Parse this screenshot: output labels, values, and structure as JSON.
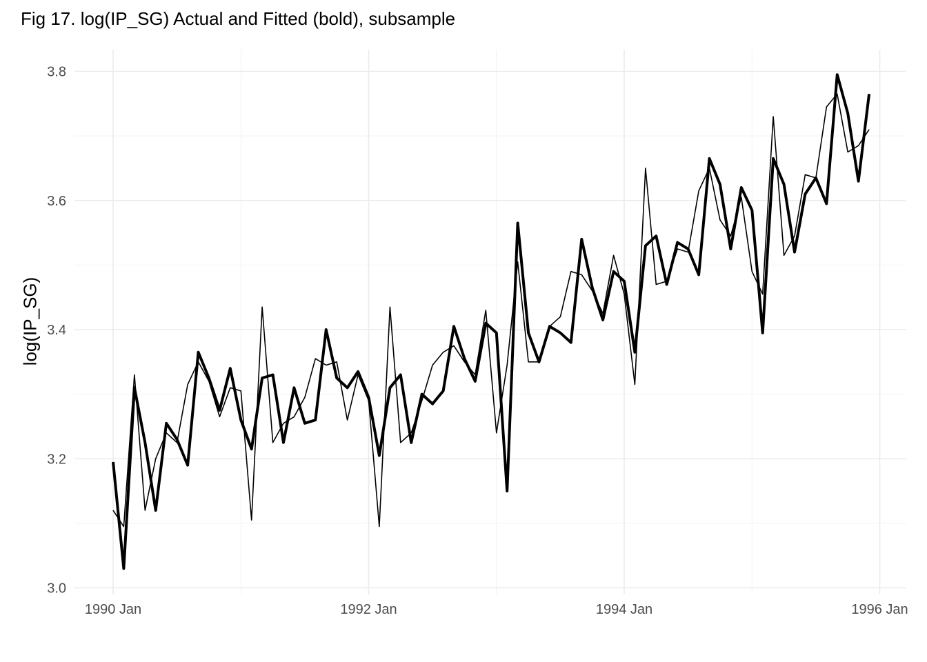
{
  "chart_data": {
    "type": "line",
    "title": "Fig 17. log(IP_SG) Actual and Fitted (bold), subsample",
    "xlabel": "",
    "ylabel": "log(IP_SG)",
    "ylim": [
      3.0,
      3.8
    ],
    "xlim": [
      "1990-01",
      "1996-01"
    ],
    "y_ticks": [
      "3.0",
      "3.2",
      "3.4",
      "3.6",
      "3.8"
    ],
    "x_ticks": [
      {
        "label": "1990 Jan",
        "date": "1990-01"
      },
      {
        "label": "1992 Jan",
        "date": "1992-01"
      },
      {
        "label": "1994 Jan",
        "date": "1994-01"
      },
      {
        "label": "1996 Jan",
        "date": "1996-01"
      }
    ],
    "grid": true,
    "legend": "none",
    "x": [
      "1990-01",
      "1990-02",
      "1990-03",
      "1990-04",
      "1990-05",
      "1990-06",
      "1990-07",
      "1990-08",
      "1990-09",
      "1990-10",
      "1990-11",
      "1990-12",
      "1991-01",
      "1991-02",
      "1991-03",
      "1991-04",
      "1991-05",
      "1991-06",
      "1991-07",
      "1991-08",
      "1991-09",
      "1991-10",
      "1991-11",
      "1991-12",
      "1992-01",
      "1992-02",
      "1992-03",
      "1992-04",
      "1992-05",
      "1992-06",
      "1992-07",
      "1992-08",
      "1992-09",
      "1992-10",
      "1992-11",
      "1992-12",
      "1993-01",
      "1993-02",
      "1993-03",
      "1993-04",
      "1993-05",
      "1993-06",
      "1993-07",
      "1993-08",
      "1993-09",
      "1993-10",
      "1993-11",
      "1993-12",
      "1994-01",
      "1994-02",
      "1994-03",
      "1994-04",
      "1994-05",
      "1994-06",
      "1994-07",
      "1994-08",
      "1994-09",
      "1994-10",
      "1994-11",
      "1994-12",
      "1995-01",
      "1995-02",
      "1995-03",
      "1995-04",
      "1995-05",
      "1995-06",
      "1995-07",
      "1995-08",
      "1995-09",
      "1995-10",
      "1995-11",
      "1995-12"
    ],
    "series": [
      {
        "style": "thin",
        "color": "#000000",
        "values": [
          3.12,
          3.095,
          3.33,
          3.12,
          3.2,
          3.24,
          3.225,
          3.315,
          3.35,
          3.32,
          3.265,
          3.31,
          3.305,
          3.105,
          3.435,
          3.225,
          3.255,
          3.265,
          3.295,
          3.355,
          3.345,
          3.35,
          3.26,
          3.33,
          3.29,
          3.095,
          3.435,
          3.225,
          3.24,
          3.29,
          3.345,
          3.365,
          3.375,
          3.35,
          3.33,
          3.43,
          3.24,
          3.345,
          3.505,
          3.35,
          3.35,
          3.405,
          3.42,
          3.49,
          3.485,
          3.46,
          3.425,
          3.515,
          3.455,
          3.315,
          3.65,
          3.47,
          3.475,
          3.525,
          3.52,
          3.615,
          3.65,
          3.57,
          3.545,
          3.605,
          3.49,
          3.455,
          3.73,
          3.515,
          3.545,
          3.64,
          3.635,
          3.745,
          3.765,
          3.675,
          3.685,
          3.71
        ]
      },
      {
        "style": "bold",
        "color": "#000000",
        "values": [
          3.195,
          3.03,
          3.31,
          3.225,
          3.12,
          3.255,
          3.23,
          3.19,
          3.365,
          3.325,
          3.275,
          3.34,
          3.26,
          3.215,
          3.325,
          3.33,
          3.225,
          3.31,
          3.255,
          3.26,
          3.4,
          3.325,
          3.31,
          3.335,
          3.295,
          3.205,
          3.31,
          3.33,
          3.225,
          3.3,
          3.285,
          3.305,
          3.405,
          3.355,
          3.32,
          3.41,
          3.395,
          3.15,
          3.565,
          3.395,
          3.35,
          3.405,
          3.395,
          3.38,
          3.54,
          3.465,
          3.415,
          3.49,
          3.475,
          3.365,
          3.53,
          3.545,
          3.47,
          3.535,
          3.525,
          3.485,
          3.665,
          3.625,
          3.525,
          3.62,
          3.585,
          3.395,
          3.665,
          3.625,
          3.52,
          3.61,
          3.635,
          3.595,
          3.795,
          3.735,
          3.63,
          3.765
        ]
      }
    ]
  }
}
